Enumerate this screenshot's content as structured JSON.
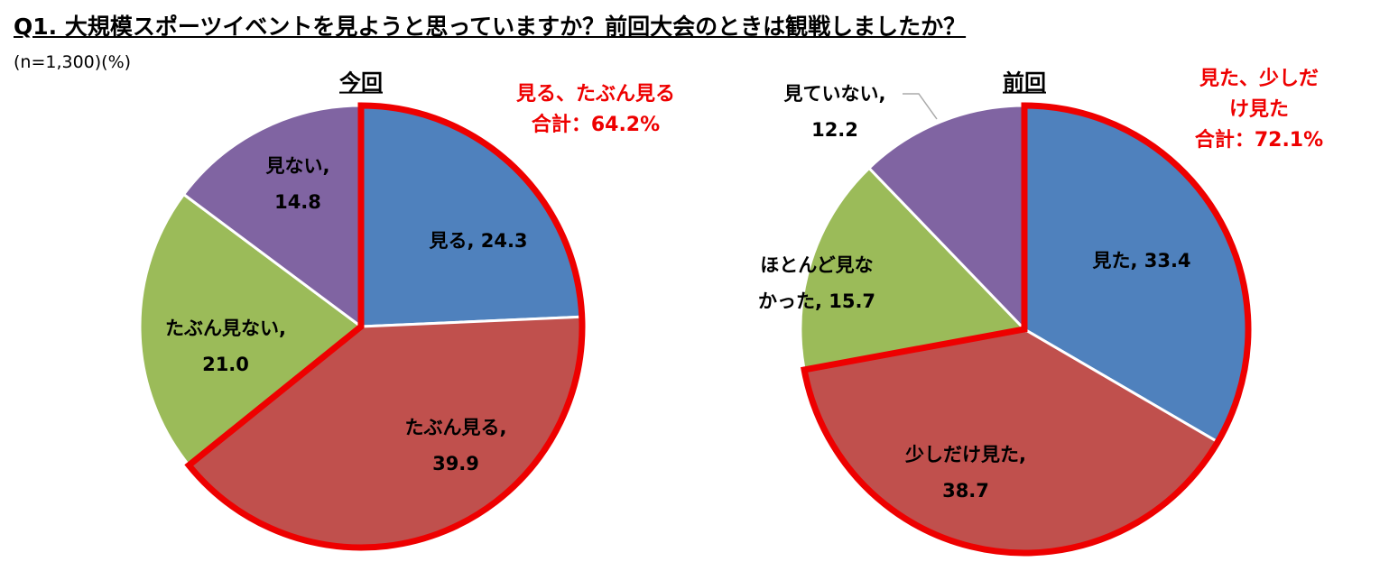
{
  "header": {
    "title": "Q1. 大規模スポーツイベントを見ようと思っていますか？前回大会のときは観戦しましたか？",
    "note": "(n=1,300)(%)"
  },
  "chart_data": [
    {
      "type": "pie",
      "title": "今回",
      "values": [
        24.3,
        39.9,
        21.0,
        14.8
      ],
      "value_labels": [
        "見る, 24.3",
        "たぶん見る,\n39.9",
        "たぶん見ない,\n21.0",
        "見ない,\n14.8"
      ],
      "colors": [
        "#4f81bd",
        "#c0504d",
        "#9bbb59",
        "#8064a2"
      ],
      "highlight": {
        "indices": [
          0,
          1
        ],
        "color": "#ee0000"
      },
      "annotation": "見る、たぶん見る\n合計：64.2%"
    },
    {
      "type": "pie",
      "title": "前回",
      "values": [
        33.4,
        38.7,
        15.7,
        12.2
      ],
      "value_labels": [
        "見た, 33.4",
        "少しだけ見た,\n38.7",
        "ほとんど見な\nかった, 15.7",
        "見ていない,\n12.2"
      ],
      "colors": [
        "#4f81bd",
        "#c0504d",
        "#9bbb59",
        "#8064a2"
      ],
      "highlight": {
        "indices": [
          0,
          1
        ],
        "color": "#ee0000"
      },
      "annotation": "見た、少しだけ見た\n合計：72.1%"
    }
  ]
}
